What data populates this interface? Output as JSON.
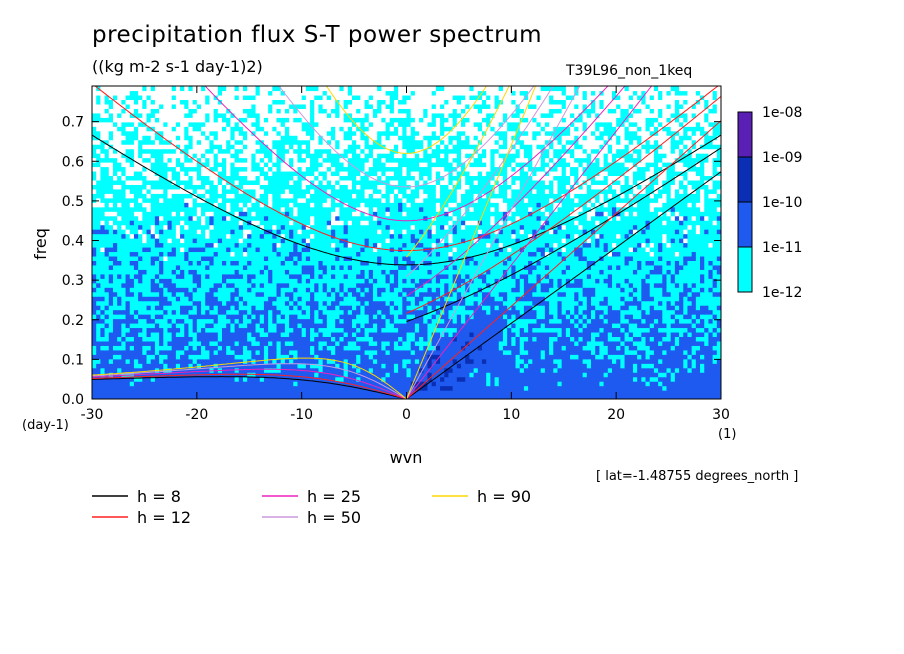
{
  "title": "precipitation flux S-T power spectrum",
  "subtitle": "((kg m-2 s-1 day-1)2)",
  "run_name": "T39L96_non_1keq",
  "lat_info": "[ lat=-1.48755 degrees_north ]",
  "chart_data": {
    "type": "heatmap",
    "xlabel": "wvn",
    "ylabel": "freq",
    "x_unit": "(1)",
    "y_unit": "(day-1)",
    "xlim": [
      -30,
      30
    ],
    "ylim": [
      0,
      0.79
    ],
    "xticks": [
      "-30",
      "-20",
      "-10",
      "0",
      "10",
      "20",
      "30"
    ],
    "yticks": [
      "0.0",
      "0.1",
      "0.2",
      "0.3",
      "0.4",
      "0.5",
      "0.6",
      "0.7"
    ],
    "colorbar": {
      "labels": [
        "1e-08",
        "1e-09",
        "1e-10",
        "1e-11",
        "1e-12"
      ],
      "colors": [
        "#5a1fb4",
        "#0a2fb4",
        "#1e5af0",
        "#3c8cff",
        "#00ffff"
      ]
    },
    "dispersion_curves": [
      {
        "name": "h =  8",
        "h": 8,
        "color": "#000000"
      },
      {
        "name": "h = 12",
        "h": 12,
        "color": "#ff2020"
      },
      {
        "name": "h = 25",
        "h": 25,
        "color": "#ee22bb"
      },
      {
        "name": "h = 50",
        "h": 50,
        "color": "#cc99dd"
      },
      {
        "name": "h = 90",
        "h": 90,
        "color": "#ffd800"
      }
    ]
  }
}
